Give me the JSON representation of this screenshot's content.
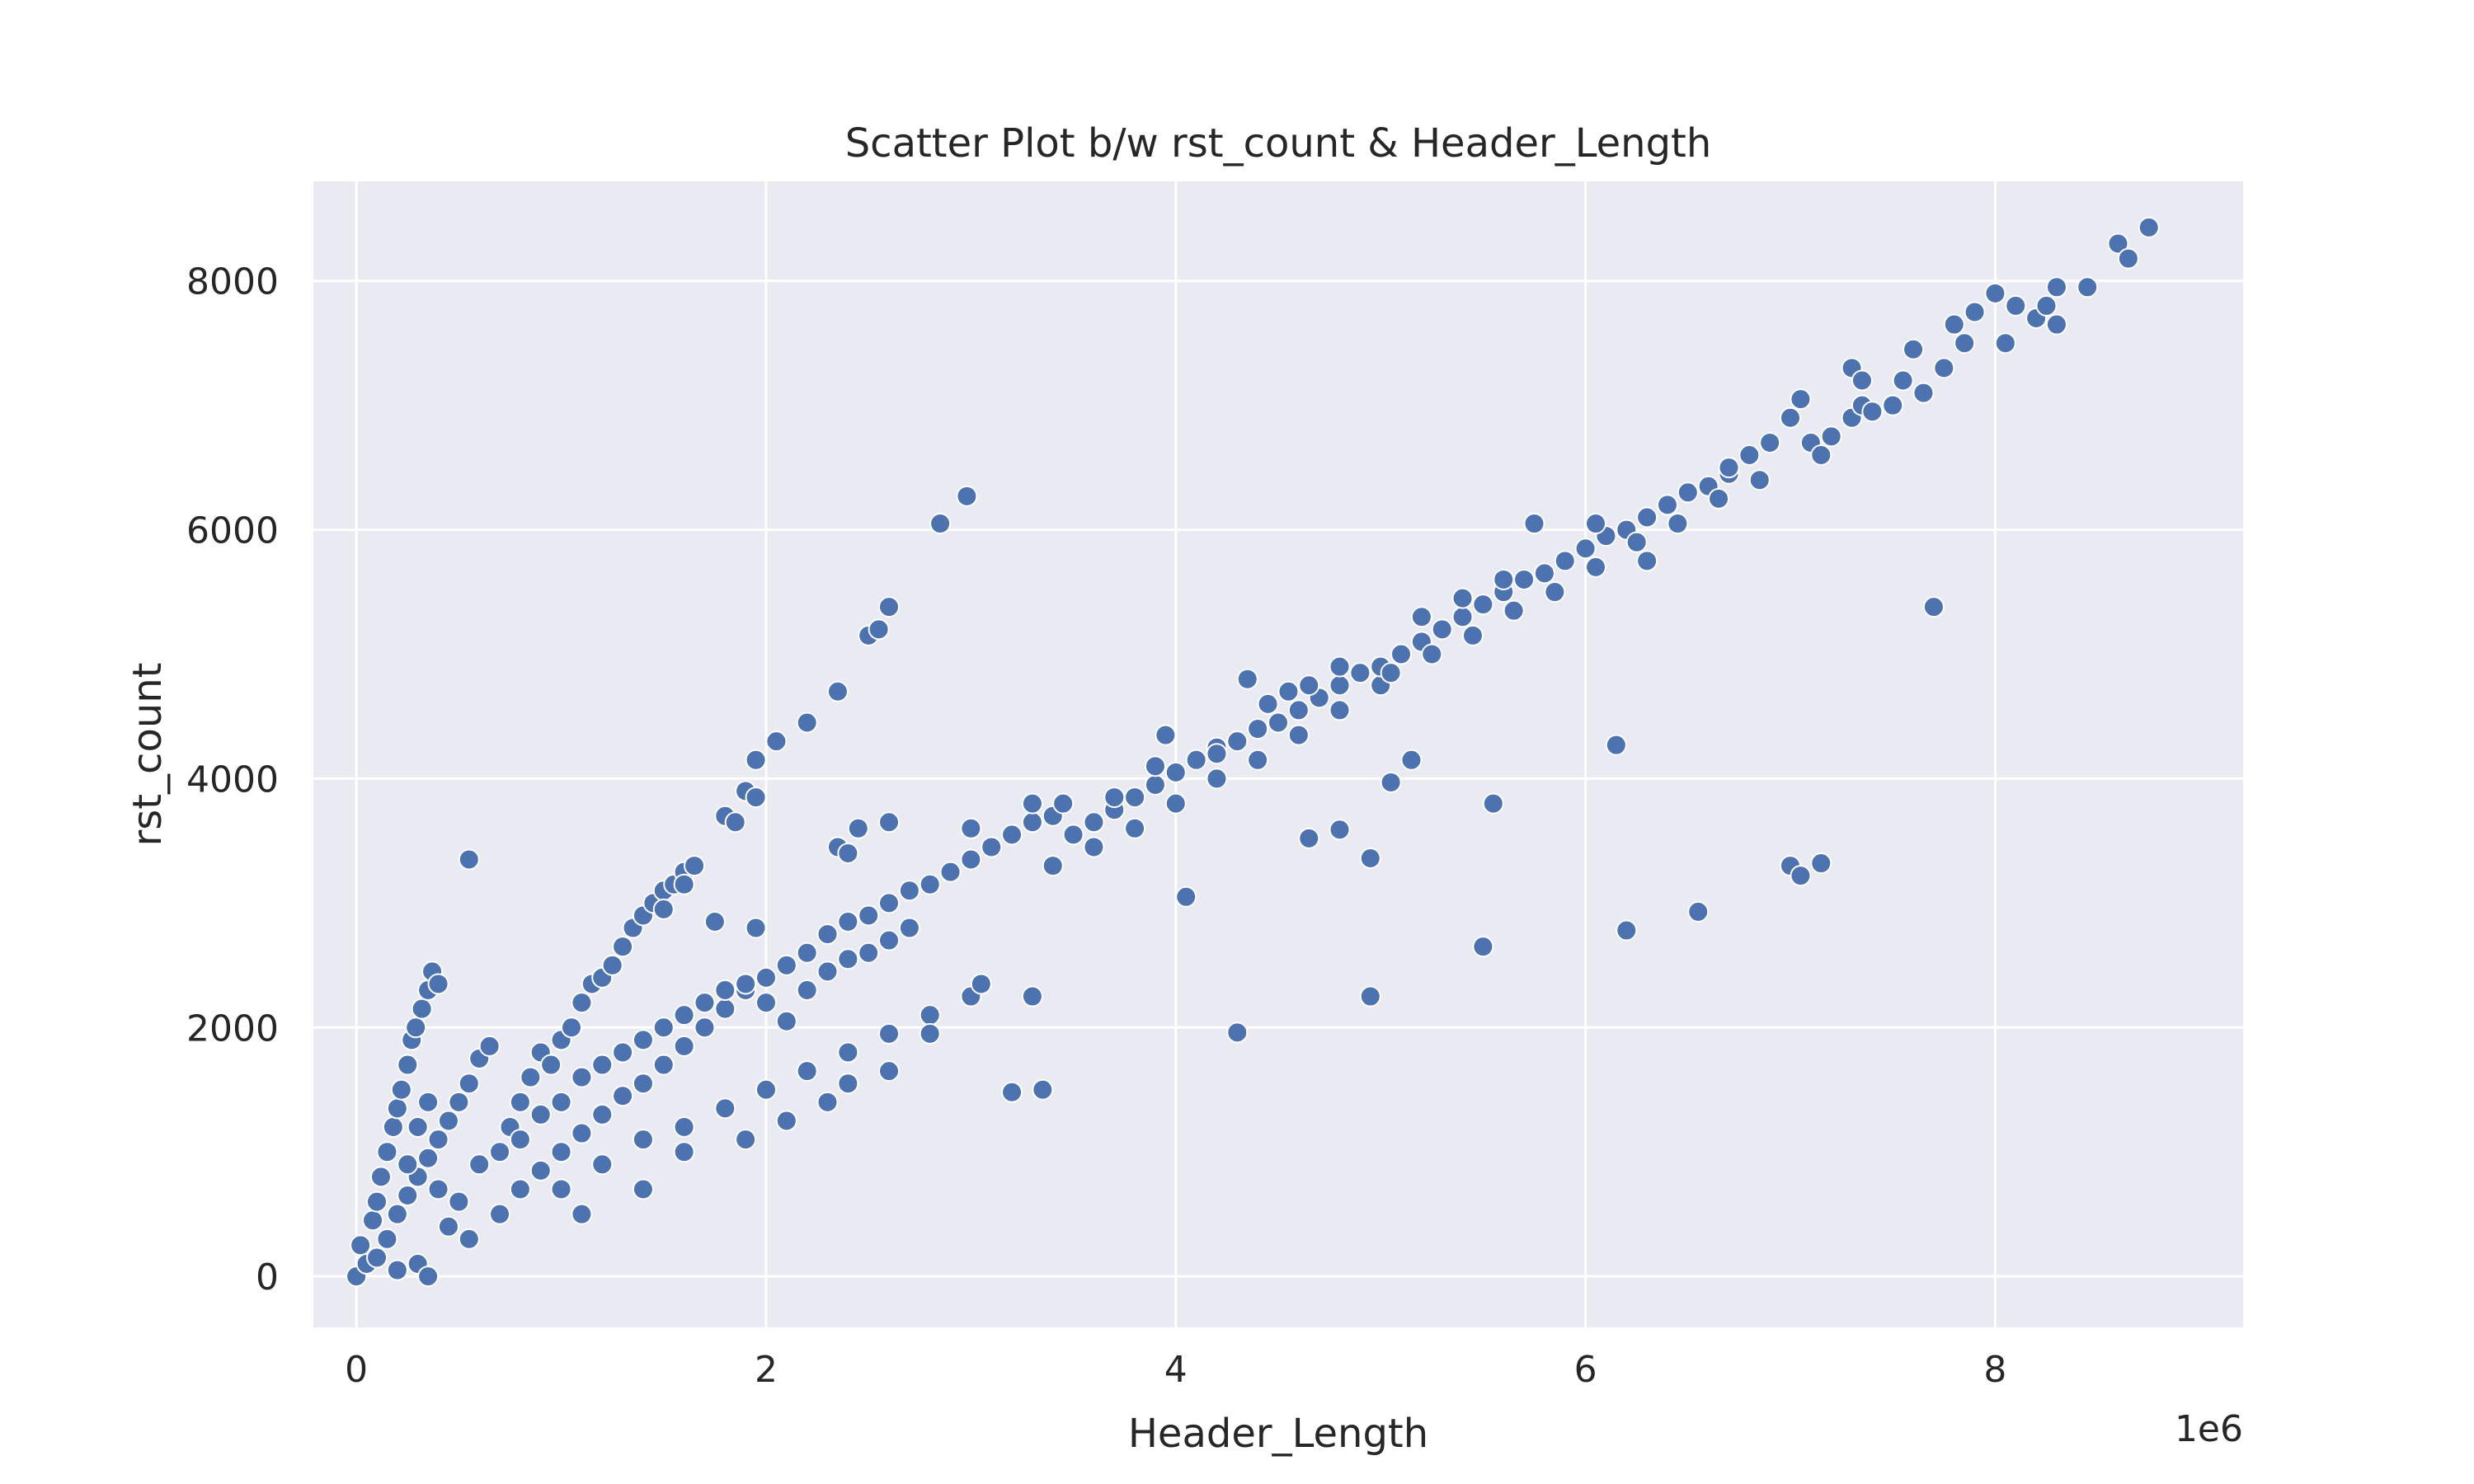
{
  "chart_data": {
    "type": "scatter",
    "title": "Scatter Plot b/w rst_count & Header_Length",
    "xlabel": "Header_Length",
    "ylabel": "rst_count",
    "x_offset_label": "1e6",
    "x_unit_scale": 1000000,
    "xlim": [
      -210000,
      9210000
    ],
    "ylim": [
      -410,
      8800
    ],
    "xticks": [
      0,
      2000000,
      4000000,
      6000000,
      8000000
    ],
    "xtick_labels": [
      "0",
      "2",
      "4",
      "6",
      "8"
    ],
    "yticks": [
      0,
      2000,
      4000,
      6000,
      8000
    ],
    "ytick_labels": [
      "0",
      "2000",
      "4000",
      "6000",
      "8000"
    ],
    "grid": true,
    "colors": {
      "background": "#eaeaf2",
      "grid": "#ffffff",
      "point": "#4c72b0",
      "text": "#262626"
    },
    "points": [
      [
        0,
        0
      ],
      [
        20000,
        250
      ],
      [
        50000,
        100
      ],
      [
        80000,
        450
      ],
      [
        100000,
        600
      ],
      [
        120000,
        800
      ],
      [
        150000,
        1000
      ],
      [
        180000,
        1200
      ],
      [
        200000,
        1350
      ],
      [
        220000,
        1500
      ],
      [
        250000,
        1700
      ],
      [
        270000,
        1900
      ],
      [
        290000,
        2000
      ],
      [
        320000,
        2150
      ],
      [
        350000,
        2300
      ],
      [
        370000,
        2450
      ],
      [
        400000,
        2350
      ],
      [
        550000,
        3350
      ],
      [
        100000,
        150
      ],
      [
        150000,
        300
      ],
      [
        200000,
        500
      ],
      [
        250000,
        650
      ],
      [
        300000,
        800
      ],
      [
        350000,
        950
      ],
      [
        400000,
        1100
      ],
      [
        450000,
        1250
      ],
      [
        500000,
        1400
      ],
      [
        550000,
        1550
      ],
      [
        600000,
        1750
      ],
      [
        650000,
        1850
      ],
      [
        200000,
        50
      ],
      [
        300000,
        100
      ],
      [
        350000,
        0
      ],
      [
        250000,
        900
      ],
      [
        300000,
        1200
      ],
      [
        350000,
        1400
      ],
      [
        400000,
        700
      ],
      [
        450000,
        400
      ],
      [
        500000,
        600
      ],
      [
        550000,
        300
      ],
      [
        600000,
        900
      ],
      [
        700000,
        1000
      ],
      [
        750000,
        1200
      ],
      [
        800000,
        1400
      ],
      [
        850000,
        1600
      ],
      [
        900000,
        1800
      ],
      [
        950000,
        1700
      ],
      [
        1000000,
        1900
      ],
      [
        1050000,
        2000
      ],
      [
        1100000,
        2200
      ],
      [
        1150000,
        2350
      ],
      [
        1200000,
        2400
      ],
      [
        1250000,
        2500
      ],
      [
        1300000,
        2650
      ],
      [
        1350000,
        2800
      ],
      [
        1400000,
        2900
      ],
      [
        1450000,
        3000
      ],
      [
        1500000,
        3100
      ],
      [
        1550000,
        3150
      ],
      [
        1600000,
        3250
      ],
      [
        1650000,
        3300
      ],
      [
        700000,
        500
      ],
      [
        800000,
        700
      ],
      [
        900000,
        850
      ],
      [
        1000000,
        1000
      ],
      [
        1100000,
        1150
      ],
      [
        1200000,
        1300
      ],
      [
        1300000,
        1450
      ],
      [
        1400000,
        1550
      ],
      [
        1500000,
        1700
      ],
      [
        1600000,
        1850
      ],
      [
        1700000,
        2000
      ],
      [
        1800000,
        2150
      ],
      [
        1900000,
        2300
      ],
      [
        2000000,
        2400
      ],
      [
        2100000,
        2500
      ],
      [
        2200000,
        2600
      ],
      [
        2300000,
        2750
      ],
      [
        2400000,
        2850
      ],
      [
        2500000,
        2900
      ],
      [
        2600000,
        3000
      ],
      [
        2700000,
        3100
      ],
      [
        2800000,
        3150
      ],
      [
        2900000,
        3250
      ],
      [
        3000000,
        3350
      ],
      [
        800000,
        1100
      ],
      [
        900000,
        1300
      ],
      [
        1000000,
        1400
      ],
      [
        1100000,
        1600
      ],
      [
        1200000,
        1700
      ],
      [
        1300000,
        1800
      ],
      [
        1400000,
        1900
      ],
      [
        1500000,
        2000
      ],
      [
        1600000,
        2100
      ],
      [
        1700000,
        2200
      ],
      [
        1800000,
        2300
      ],
      [
        1900000,
        2350
      ],
      [
        2000000,
        2200
      ],
      [
        2100000,
        2050
      ],
      [
        2200000,
        2300
      ],
      [
        2300000,
        2450
      ],
      [
        2400000,
        2550
      ],
      [
        2500000,
        2600
      ],
      [
        2600000,
        2700
      ],
      [
        2700000,
        2800
      ],
      [
        1000000,
        700
      ],
      [
        1200000,
        900
      ],
      [
        1400000,
        1100
      ],
      [
        1600000,
        1200
      ],
      [
        1800000,
        1350
      ],
      [
        2000000,
        1500
      ],
      [
        2200000,
        1650
      ],
      [
        2400000,
        1800
      ],
      [
        2600000,
        1950
      ],
      [
        2800000,
        2100
      ],
      [
        3000000,
        2250
      ],
      [
        1100000,
        500
      ],
      [
        1400000,
        700
      ],
      [
        1600000,
        1000
      ],
      [
        1900000,
        1100
      ],
      [
        2100000,
        1250
      ],
      [
        2300000,
        1400
      ],
      [
        2400000,
        1550
      ],
      [
        2600000,
        1650
      ],
      [
        2800000,
        1950
      ],
      [
        1900000,
        3900
      ],
      [
        1950000,
        4150
      ],
      [
        2050000,
        4300
      ],
      [
        2200000,
        4450
      ],
      [
        2350000,
        4700
      ],
      [
        2500000,
        5150
      ],
      [
        2550000,
        5200
      ],
      [
        2600000,
        5380
      ],
      [
        2850000,
        6050
      ],
      [
        2980000,
        6270
      ],
      [
        1500000,
        2950
      ],
      [
        1600000,
        3150
      ],
      [
        1750000,
        2850
      ],
      [
        1800000,
        3700
      ],
      [
        1850000,
        3650
      ],
      [
        1950000,
        3850
      ],
      [
        1950000,
        2800
      ],
      [
        2350000,
        3450
      ],
      [
        2400000,
        3400
      ],
      [
        2450000,
        3600
      ],
      [
        2600000,
        3650
      ],
      [
        3000000,
        3600
      ],
      [
        3050000,
        2350
      ],
      [
        3200000,
        1480
      ],
      [
        3350000,
        1500
      ],
      [
        3300000,
        2250
      ],
      [
        3100000,
        3450
      ],
      [
        3200000,
        3550
      ],
      [
        3300000,
        3650
      ],
      [
        3400000,
        3700
      ],
      [
        3500000,
        3550
      ],
      [
        3600000,
        3650
      ],
      [
        3700000,
        3750
      ],
      [
        3800000,
        3850
      ],
      [
        3900000,
        3950
      ],
      [
        4000000,
        4050
      ],
      [
        4100000,
        4150
      ],
      [
        4200000,
        4250
      ],
      [
        4300000,
        4300
      ],
      [
        4400000,
        4400
      ],
      [
        4500000,
        4450
      ],
      [
        4600000,
        4550
      ],
      [
        4700000,
        4650
      ],
      [
        4800000,
        4750
      ],
      [
        4900000,
        4850
      ],
      [
        3400000,
        3300
      ],
      [
        3600000,
        3450
      ],
      [
        3800000,
        3600
      ],
      [
        4000000,
        3800
      ],
      [
        4200000,
        4000
      ],
      [
        4400000,
        4150
      ],
      [
        4600000,
        4350
      ],
      [
        4800000,
        4550
      ],
      [
        5000000,
        4750
      ],
      [
        3300000,
        3800
      ],
      [
        3450000,
        3800
      ],
      [
        3700000,
        3850
      ],
      [
        3900000,
        4100
      ],
      [
        3950000,
        4350
      ],
      [
        4200000,
        4200
      ],
      [
        4350000,
        4800
      ],
      [
        4450000,
        4600
      ],
      [
        4550000,
        4700
      ],
      [
        4650000,
        4750
      ],
      [
        4800000,
        4900
      ],
      [
        5000000,
        4900
      ],
      [
        5100000,
        5000
      ],
      [
        5200000,
        5100
      ],
      [
        5300000,
        5200
      ],
      [
        5400000,
        5300
      ],
      [
        5500000,
        5400
      ],
      [
        5600000,
        5500
      ],
      [
        5700000,
        5600
      ],
      [
        5800000,
        5650
      ],
      [
        5900000,
        5750
      ],
      [
        6000000,
        5850
      ],
      [
        6100000,
        5950
      ],
      [
        6200000,
        6000
      ],
      [
        6300000,
        6100
      ],
      [
        6400000,
        6200
      ],
      [
        6500000,
        6300
      ],
      [
        6600000,
        6350
      ],
      [
        6700000,
        6450
      ],
      [
        6800000,
        6600
      ],
      [
        6900000,
        6700
      ],
      [
        5050000,
        4850
      ],
      [
        5250000,
        5000
      ],
      [
        5450000,
        5150
      ],
      [
        5650000,
        5350
      ],
      [
        5850000,
        5500
      ],
      [
        6050000,
        5700
      ],
      [
        6250000,
        5900
      ],
      [
        6450000,
        6050
      ],
      [
        6650000,
        6250
      ],
      [
        6850000,
        6400
      ],
      [
        5200000,
        5300
      ],
      [
        5400000,
        5450
      ],
      [
        5600000,
        5600
      ],
      [
        5750000,
        6050
      ],
      [
        6050000,
        6050
      ],
      [
        6300000,
        5750
      ],
      [
        6700000,
        6500
      ],
      [
        7000000,
        6900
      ],
      [
        7050000,
        7050
      ],
      [
        7100000,
        6700
      ],
      [
        7150000,
        6600
      ],
      [
        7200000,
        6750
      ],
      [
        7300000,
        6900
      ],
      [
        7350000,
        7000
      ],
      [
        7400000,
        6950
      ],
      [
        7500000,
        7000
      ],
      [
        7550000,
        7200
      ],
      [
        7600000,
        7450
      ],
      [
        7650000,
        7100
      ],
      [
        7300000,
        7300
      ],
      [
        7350000,
        7200
      ],
      [
        7750000,
        7300
      ],
      [
        7800000,
        7650
      ],
      [
        7850000,
        7500
      ],
      [
        7900000,
        7750
      ],
      [
        8000000,
        7900
      ],
      [
        8050000,
        7500
      ],
      [
        8100000,
        7800
      ],
      [
        8200000,
        7700
      ],
      [
        8250000,
        7800
      ],
      [
        8300000,
        7650
      ],
      [
        8300000,
        7950
      ],
      [
        8450000,
        7950
      ],
      [
        8600000,
        8300
      ],
      [
        8650000,
        8180
      ],
      [
        8750000,
        8430
      ],
      [
        4050000,
        3050
      ],
      [
        4300000,
        1960
      ],
      [
        4650000,
        3520
      ],
      [
        4800000,
        3590
      ],
      [
        4950000,
        3360
      ],
      [
        4950000,
        2250
      ],
      [
        5050000,
        3970
      ],
      [
        5150000,
        4150
      ],
      [
        5500000,
        2650
      ],
      [
        5550000,
        3800
      ],
      [
        6150000,
        4270
      ],
      [
        6200000,
        2780
      ],
      [
        6550000,
        2930
      ],
      [
        7000000,
        3300
      ],
      [
        7050000,
        3220
      ],
      [
        7150000,
        3320
      ],
      [
        7700000,
        5380
      ]
    ]
  }
}
